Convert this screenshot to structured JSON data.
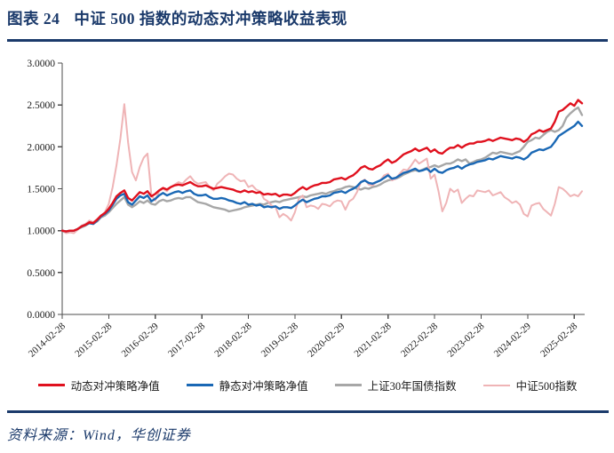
{
  "figure": {
    "label": "图表 24",
    "title": "中证 500 指数的动态对冲策略收益表现"
  },
  "source_line": "资料来源：Wind，华创证券",
  "colors": {
    "accent_navy": "#1b3a6b",
    "axis": "#4d4d4d",
    "red_series": "#e0111e",
    "blue_series": "#1a68b5",
    "gray_series": "#a7a7a7",
    "pink_series": "#efb4b6"
  },
  "chart_data": {
    "type": "line",
    "title": "",
    "xlabel": "",
    "ylabel": "",
    "grid": false,
    "legend_position": "bottom",
    "y_axis": {
      "min": 0,
      "max": 3,
      "tick_labels": [
        "0.0000",
        "0.5000",
        "1.0000",
        "1.5000",
        "2.0000",
        "2.5000",
        "3.0000"
      ]
    },
    "x_axis": {
      "tick_labels": [
        "2014-02-28",
        "2015-02-28",
        "2016-02-29",
        "2017-02-28",
        "2018-02-28",
        "2019-02-28",
        "2020-02-29",
        "2021-02-28",
        "2022-02-28",
        "2023-02-28",
        "2024-02-29",
        "2025-02-28"
      ],
      "tick_step_points": 12,
      "frequency": "monthly"
    },
    "series": [
      {
        "name": "动态对冲策略净值",
        "color": "#e0111e",
        "line_width": 2.4,
        "values": [
          1.0,
          0.99,
          1.0,
          1.0,
          1.02,
          1.05,
          1.07,
          1.1,
          1.09,
          1.13,
          1.18,
          1.21,
          1.26,
          1.33,
          1.41,
          1.45,
          1.48,
          1.39,
          1.36,
          1.41,
          1.46,
          1.44,
          1.47,
          1.41,
          1.44,
          1.48,
          1.51,
          1.49,
          1.52,
          1.54,
          1.55,
          1.54,
          1.56,
          1.58,
          1.55,
          1.53,
          1.53,
          1.54,
          1.52,
          1.5,
          1.51,
          1.52,
          1.51,
          1.5,
          1.49,
          1.47,
          1.46,
          1.48,
          1.46,
          1.47,
          1.45,
          1.46,
          1.43,
          1.44,
          1.43,
          1.44,
          1.41,
          1.43,
          1.43,
          1.42,
          1.45,
          1.49,
          1.52,
          1.49,
          1.52,
          1.54,
          1.55,
          1.57,
          1.57,
          1.58,
          1.61,
          1.62,
          1.63,
          1.61,
          1.64,
          1.66,
          1.7,
          1.75,
          1.77,
          1.74,
          1.73,
          1.76,
          1.78,
          1.82,
          1.85,
          1.81,
          1.83,
          1.87,
          1.91,
          1.93,
          1.95,
          1.98,
          1.95,
          1.97,
          1.99,
          1.94,
          1.97,
          1.93,
          1.92,
          1.96,
          1.99,
          1.99,
          2.02,
          1.99,
          2.02,
          2.04,
          2.04,
          2.06,
          2.06,
          2.07,
          2.09,
          2.07,
          2.09,
          2.11,
          2.1,
          2.09,
          2.08,
          2.1,
          2.09,
          2.06,
          2.09,
          2.15,
          2.17,
          2.2,
          2.18,
          2.2,
          2.22,
          2.3,
          2.42,
          2.44,
          2.48,
          2.52,
          2.49,
          2.56,
          2.52
        ]
      },
      {
        "name": "静态对冲策略净值",
        "color": "#1a68b5",
        "line_width": 2.4,
        "values": [
          1.0,
          0.99,
          1.0,
          1.0,
          1.02,
          1.05,
          1.07,
          1.09,
          1.08,
          1.12,
          1.17,
          1.2,
          1.24,
          1.31,
          1.38,
          1.42,
          1.44,
          1.34,
          1.31,
          1.36,
          1.41,
          1.39,
          1.42,
          1.35,
          1.38,
          1.42,
          1.45,
          1.42,
          1.44,
          1.46,
          1.47,
          1.45,
          1.47,
          1.48,
          1.44,
          1.42,
          1.42,
          1.43,
          1.4,
          1.38,
          1.38,
          1.39,
          1.38,
          1.36,
          1.35,
          1.33,
          1.32,
          1.34,
          1.31,
          1.32,
          1.3,
          1.31,
          1.28,
          1.29,
          1.28,
          1.29,
          1.26,
          1.28,
          1.28,
          1.27,
          1.3,
          1.34,
          1.37,
          1.34,
          1.36,
          1.38,
          1.39,
          1.41,
          1.41,
          1.42,
          1.45,
          1.46,
          1.47,
          1.45,
          1.48,
          1.5,
          1.53,
          1.58,
          1.6,
          1.57,
          1.56,
          1.58,
          1.6,
          1.63,
          1.66,
          1.62,
          1.63,
          1.66,
          1.69,
          1.7,
          1.72,
          1.74,
          1.71,
          1.72,
          1.74,
          1.7,
          1.74,
          1.7,
          1.69,
          1.72,
          1.74,
          1.75,
          1.77,
          1.74,
          1.77,
          1.79,
          1.8,
          1.82,
          1.83,
          1.84,
          1.86,
          1.85,
          1.87,
          1.89,
          1.88,
          1.87,
          1.86,
          1.88,
          1.87,
          1.85,
          1.88,
          1.93,
          1.95,
          1.97,
          1.96,
          1.98,
          2.0,
          2.06,
          2.13,
          2.16,
          2.19,
          2.22,
          2.25,
          2.3,
          2.25
        ]
      },
      {
        "name": "上证30年国债指数",
        "color": "#a7a7a7",
        "line_width": 2.4,
        "values": [
          1.0,
          0.98,
          0.99,
          1.0,
          1.02,
          1.04,
          1.06,
          1.09,
          1.08,
          1.11,
          1.16,
          1.18,
          1.22,
          1.27,
          1.32,
          1.36,
          1.4,
          1.31,
          1.28,
          1.31,
          1.35,
          1.33,
          1.36,
          1.32,
          1.31,
          1.35,
          1.37,
          1.35,
          1.36,
          1.38,
          1.39,
          1.38,
          1.4,
          1.4,
          1.37,
          1.34,
          1.33,
          1.32,
          1.3,
          1.28,
          1.27,
          1.26,
          1.25,
          1.23,
          1.24,
          1.25,
          1.26,
          1.28,
          1.29,
          1.3,
          1.31,
          1.32,
          1.31,
          1.33,
          1.34,
          1.35,
          1.34,
          1.36,
          1.37,
          1.38,
          1.39,
          1.4,
          1.41,
          1.4,
          1.42,
          1.43,
          1.44,
          1.45,
          1.44,
          1.46,
          1.47,
          1.49,
          1.5,
          1.52,
          1.53,
          1.52,
          1.5,
          1.49,
          1.51,
          1.5,
          1.52,
          1.53,
          1.55,
          1.58,
          1.6,
          1.61,
          1.62,
          1.64,
          1.67,
          1.69,
          1.71,
          1.72,
          1.71,
          1.73,
          1.75,
          1.76,
          1.78,
          1.76,
          1.78,
          1.8,
          1.8,
          1.82,
          1.85,
          1.83,
          1.85,
          1.8,
          1.82,
          1.84,
          1.85,
          1.87,
          1.9,
          1.93,
          1.92,
          1.94,
          1.93,
          1.92,
          1.91,
          1.93,
          1.95,
          2.0,
          2.06,
          2.08,
          2.11,
          2.1,
          2.14,
          2.18,
          2.2,
          2.18,
          2.2,
          2.25,
          2.35,
          2.4,
          2.44,
          2.47,
          2.38
        ]
      },
      {
        "name": "中证500指数",
        "color": "#efb4b6",
        "line_width": 2.0,
        "values": [
          1.0,
          0.97,
          0.98,
          0.97,
          1.01,
          1.06,
          1.08,
          1.12,
          1.1,
          1.14,
          1.18,
          1.22,
          1.32,
          1.52,
          1.78,
          2.1,
          2.51,
          2.05,
          1.7,
          1.6,
          1.76,
          1.87,
          1.92,
          1.42,
          1.36,
          1.47,
          1.5,
          1.47,
          1.52,
          1.55,
          1.58,
          1.56,
          1.61,
          1.65,
          1.59,
          1.56,
          1.57,
          1.58,
          1.52,
          1.48,
          1.56,
          1.6,
          1.65,
          1.68,
          1.67,
          1.62,
          1.59,
          1.6,
          1.52,
          1.54,
          1.49,
          1.47,
          1.38,
          1.35,
          1.3,
          1.28,
          1.16,
          1.2,
          1.17,
          1.12,
          1.22,
          1.38,
          1.42,
          1.28,
          1.3,
          1.29,
          1.26,
          1.32,
          1.31,
          1.29,
          1.34,
          1.36,
          1.35,
          1.25,
          1.35,
          1.38,
          1.46,
          1.58,
          1.61,
          1.55,
          1.54,
          1.58,
          1.6,
          1.66,
          1.68,
          1.6,
          1.62,
          1.68,
          1.73,
          1.72,
          1.78,
          1.85,
          1.8,
          1.83,
          1.86,
          1.62,
          1.67,
          1.47,
          1.23,
          1.33,
          1.5,
          1.46,
          1.49,
          1.33,
          1.38,
          1.42,
          1.41,
          1.48,
          1.47,
          1.46,
          1.48,
          1.42,
          1.44,
          1.46,
          1.4,
          1.37,
          1.33,
          1.35,
          1.31,
          1.2,
          1.17,
          1.3,
          1.32,
          1.33,
          1.26,
          1.22,
          1.18,
          1.32,
          1.52,
          1.5,
          1.46,
          1.41,
          1.43,
          1.41,
          1.47
        ]
      }
    ]
  }
}
